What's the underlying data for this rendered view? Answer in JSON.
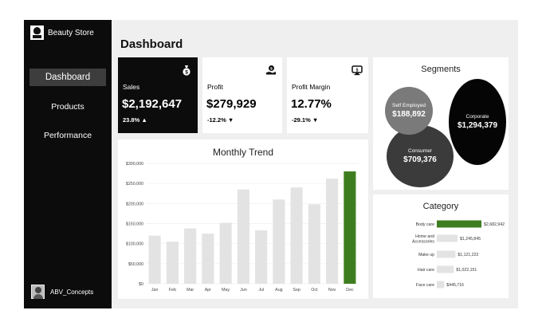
{
  "sidebar": {
    "brand": "Beauty Store",
    "nav": [
      "Dashboard",
      "Products",
      "Performance"
    ],
    "user": "ABV_Concepts"
  },
  "header": {
    "title": "Dashboard"
  },
  "kpis": [
    {
      "label": "Sales",
      "value": "$2,192,647",
      "change": "23.8% ▲",
      "icon": "money-bag-icon"
    },
    {
      "label": "Profit",
      "value": "$279,929",
      "change": "-12.2% ▼",
      "icon": "hand-money-icon"
    },
    {
      "label": "Profit Margin",
      "value": "12.77%",
      "change": "-29.1% ▼",
      "icon": "money-screen-icon"
    }
  ],
  "segments": {
    "title": "Segments",
    "items": [
      {
        "name": "Self Employed",
        "value": "$188,892"
      },
      {
        "name": "Corporate",
        "value": "$1,294,379"
      },
      {
        "name": "Consumer",
        "value": "$709,376"
      }
    ]
  },
  "colors": {
    "accent_green": "#3e7d1f",
    "bar_gray": "#e3e3e3",
    "dark": "#0c0c0c"
  },
  "chart_data": [
    {
      "type": "bar",
      "title": "Monthly Trend",
      "categories": [
        "Jan",
        "Feb",
        "Mar",
        "Apr",
        "May",
        "Jun",
        "Jul",
        "Aug",
        "Sep",
        "Oct",
        "Nov",
        "Dec"
      ],
      "values": [
        120000,
        105000,
        138000,
        125000,
        152000,
        235000,
        133000,
        210000,
        240000,
        198000,
        262000,
        280000
      ],
      "highlight_category": "Dec",
      "yticks": [
        "$0",
        "$50,000",
        "$100,000",
        "$150,000",
        "$200,000",
        "$250,000",
        "$300,000"
      ],
      "ylim": [
        0,
        300000
      ],
      "grid": true
    },
    {
      "type": "bar",
      "orientation": "horizontal",
      "title": "Category",
      "categories": [
        "Body care",
        "Home and Accessories",
        "Make up",
        "Hair care",
        "Face care"
      ],
      "values": [
        2682942,
        1245845,
        1121222,
        1022151,
        445716
      ],
      "labels": [
        "$2,682,942",
        "$1,245,845",
        "$1,121,222",
        "$1,022,151",
        "$445,716"
      ],
      "highlight_category": "Body care"
    }
  ]
}
